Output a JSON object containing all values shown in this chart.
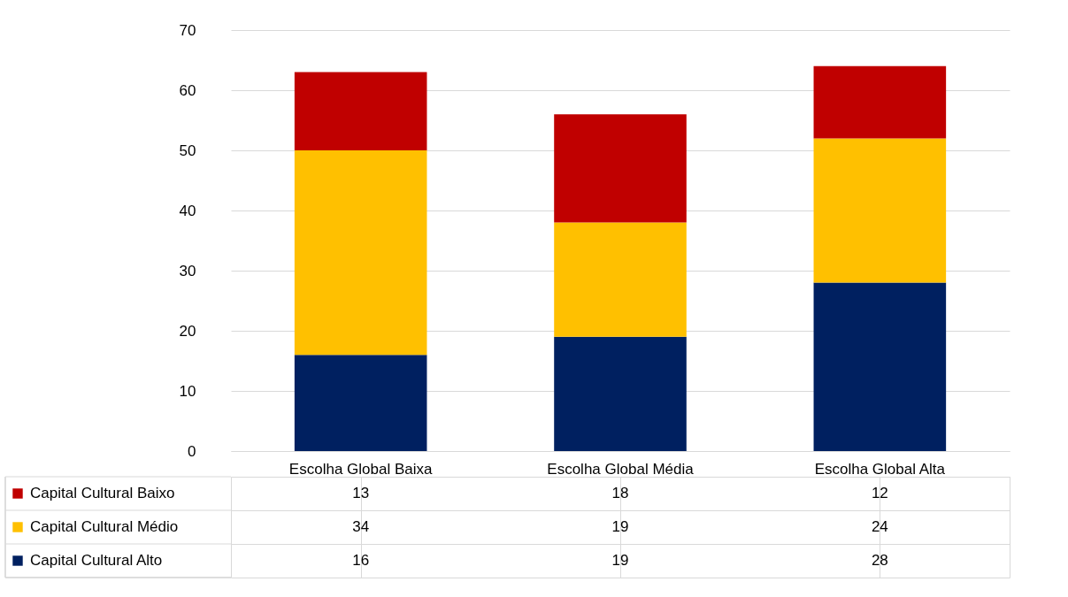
{
  "chart_data": {
    "type": "bar",
    "stacked": true,
    "categories": [
      "Escolha Global Baixa",
      "Escolha Global Média",
      "Escolha Global Alta"
    ],
    "series": [
      {
        "name": "Capital Cultural Alto",
        "color": "#002060",
        "values": [
          16,
          19,
          28
        ]
      },
      {
        "name": "Capital Cultural Médio",
        "color": "#ffc000",
        "values": [
          34,
          19,
          24
        ]
      },
      {
        "name": "Capital Cultural Baixo",
        "color": "#c00000",
        "values": [
          13,
          18,
          12
        ]
      }
    ],
    "ylim": [
      0,
      70
    ],
    "yticks": [
      0,
      10,
      20,
      30,
      40,
      50,
      60,
      70
    ],
    "grid": "y",
    "data_labels": true,
    "legend": "bottom left"
  }
}
